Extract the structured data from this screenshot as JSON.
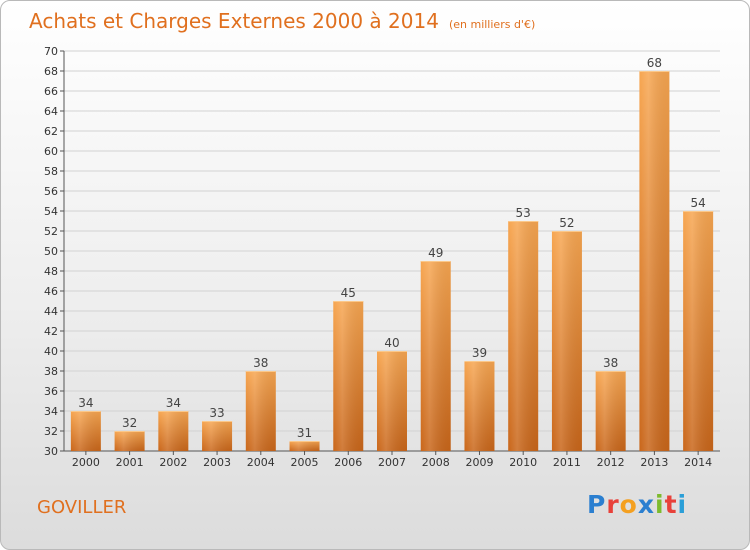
{
  "header": {
    "title": "Achats et Charges Externes 2000 à 2014",
    "subtitle": "(en milliers d'€)"
  },
  "footer": {
    "commune": "GOVILLER",
    "logo": {
      "letters": [
        "P",
        "r",
        "o",
        "x",
        "i",
        "t",
        "i"
      ],
      "colors": [
        "#2b7fd0",
        "#e8413a",
        "#f4a020",
        "#2b7fd0",
        "#7dbb2e",
        "#e8413a",
        "#2b9fd8"
      ]
    }
  },
  "chart_data": {
    "type": "bar",
    "categories": [
      "2000",
      "2001",
      "2002",
      "2003",
      "2004",
      "2005",
      "2006",
      "2007",
      "2008",
      "2009",
      "2010",
      "2011",
      "2012",
      "2013",
      "2014"
    ],
    "values": [
      34,
      32,
      34,
      33,
      38,
      31,
      45,
      40,
      49,
      39,
      53,
      52,
      38,
      68,
      54
    ],
    "data_labels": [
      "34",
      "32",
      "34",
      "33",
      "38",
      "31",
      "45",
      "40",
      "49",
      "39",
      "53",
      "52",
      "38",
      "68",
      "54"
    ],
    "ylim": [
      30,
      70
    ],
    "yticks": [
      30,
      32,
      34,
      36,
      38,
      40,
      42,
      44,
      46,
      48,
      50,
      52,
      54,
      56,
      58,
      60,
      62,
      64,
      66,
      68,
      70
    ],
    "grid": true,
    "colors": {
      "bar_light": "#f7a651",
      "bar_dark": "#c9661a",
      "text": "#e0701f"
    }
  }
}
